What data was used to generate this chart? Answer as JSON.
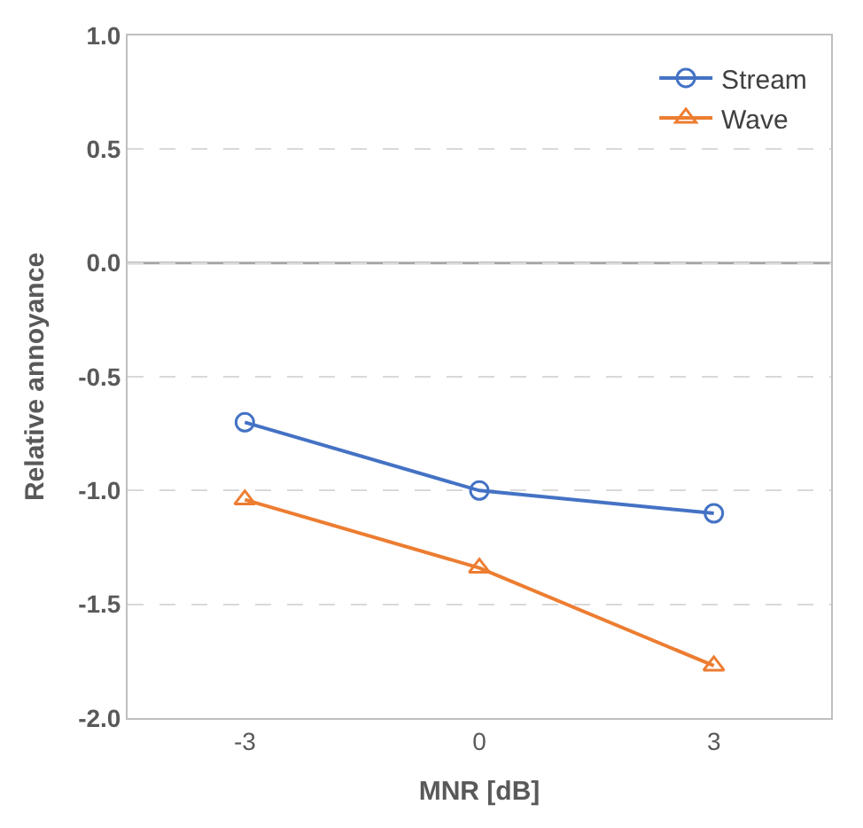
{
  "chart_data": {
    "type": "line",
    "xlabel": "MNR [dB]",
    "ylabel": "Relative annoyance",
    "categories": [
      "-3",
      "0",
      "3"
    ],
    "series": [
      {
        "name": "Stream",
        "color": "#4472c4",
        "values": [
          -0.7,
          -1.0,
          -1.1
        ],
        "marker": "circle"
      },
      {
        "name": "Wave",
        "color": "#ed7d31",
        "values": [
          -1.04,
          -1.34,
          -1.77
        ],
        "marker": "triangle"
      }
    ],
    "ylim": [
      -2.0,
      1.0
    ],
    "yticks": [
      {
        "value": -2.0,
        "label": "-2.0"
      },
      {
        "value": -1.5,
        "label": "-1.5"
      },
      {
        "value": -1.0,
        "label": "-1.0"
      },
      {
        "value": -0.5,
        "label": "-0.5"
      },
      {
        "value": 0.0,
        "label": "0.0"
      },
      {
        "value": 0.5,
        "label": "0.5"
      },
      {
        "value": 1.0,
        "label": "1.0"
      }
    ],
    "ref_lines": [
      {
        "axis": "y",
        "value": 0,
        "color": "#a6a6a6",
        "line_style": "solid"
      }
    ],
    "grid": "y",
    "legend": "top right",
    "line_style": "solid"
  }
}
